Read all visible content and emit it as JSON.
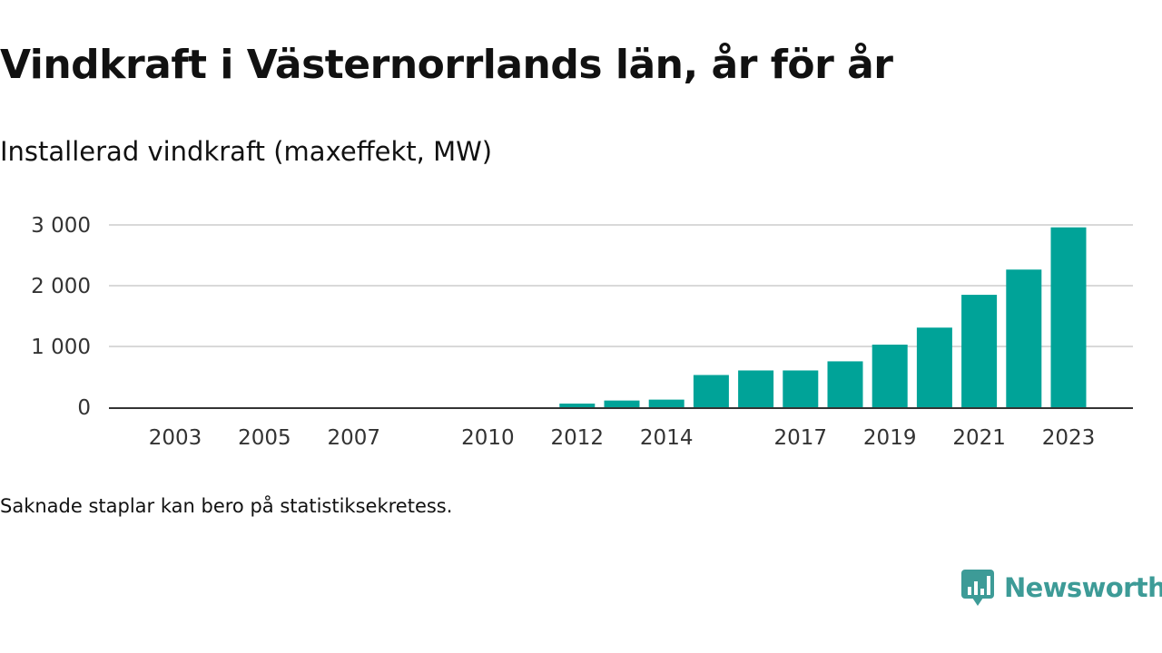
{
  "header": {
    "title": "Vindkraft i Västernorrlands län, år för år",
    "subtitle": "Installerad vindkraft (maxeffekt, MW)"
  },
  "footer": {
    "note": "Saknade staplar kan bero på statistiksekretess.",
    "brand": "Newsworthy"
  },
  "colors": {
    "bar": "#00a398",
    "brand": "#3d9b97",
    "grid": "#d9d9d9",
    "axis": "#333333"
  },
  "icons": {
    "brand_logo": "bar-chart-speech-bubble-icon"
  },
  "chart_data": {
    "type": "bar",
    "title": "Vindkraft i Västernorrlands län, år för år",
    "subtitle": "Installerad vindkraft (maxeffekt, MW)",
    "categories": [
      2003,
      2004,
      2005,
      2006,
      2007,
      2008,
      2009,
      2010,
      2011,
      2012,
      2013,
      2014,
      2015,
      2016,
      2017,
      2018,
      2019,
      2020,
      2021,
      2022,
      2023
    ],
    "values": [
      0,
      0,
      0,
      0,
      0,
      0,
      0,
      0,
      0,
      60,
      110,
      125,
      530,
      605,
      605,
      755,
      1030,
      1310,
      1850,
      2265,
      2960
    ],
    "x_tick_labels": [
      "2003",
      "2005",
      "2007",
      "2010",
      "2012",
      "2014",
      "2017",
      "2019",
      "2021",
      "2023"
    ],
    "y_ticks": [
      0,
      1000,
      2000,
      3000
    ],
    "y_tick_labels": [
      "0",
      "1 000",
      "2 000",
      "3 000"
    ],
    "ylim": [
      0,
      3000
    ],
    "grid": true,
    "legend": "none"
  }
}
